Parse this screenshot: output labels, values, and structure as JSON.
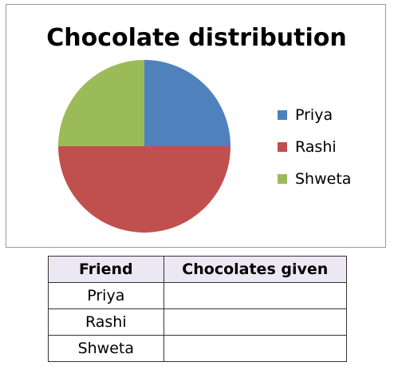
{
  "chart_data": {
    "type": "pie",
    "title": "Chocolate distribution",
    "categories": [
      "Priya",
      "Rashi",
      "Shweta"
    ],
    "values": [
      25,
      50,
      25
    ],
    "colors": [
      "#4f81bd",
      "#c0504d",
      "#9bbb59"
    ],
    "start_angle": "12 o'clock, clockwise",
    "legend": {
      "placement": "right",
      "entries": [
        "Priya",
        "Rashi",
        "Shweta"
      ]
    }
  },
  "table": {
    "headers": [
      "Friend",
      "Chocolates given"
    ],
    "rows": [
      {
        "friend": "Priya",
        "given": ""
      },
      {
        "friend": "Rashi",
        "given": ""
      },
      {
        "friend": "Shweta",
        "given": ""
      }
    ]
  }
}
